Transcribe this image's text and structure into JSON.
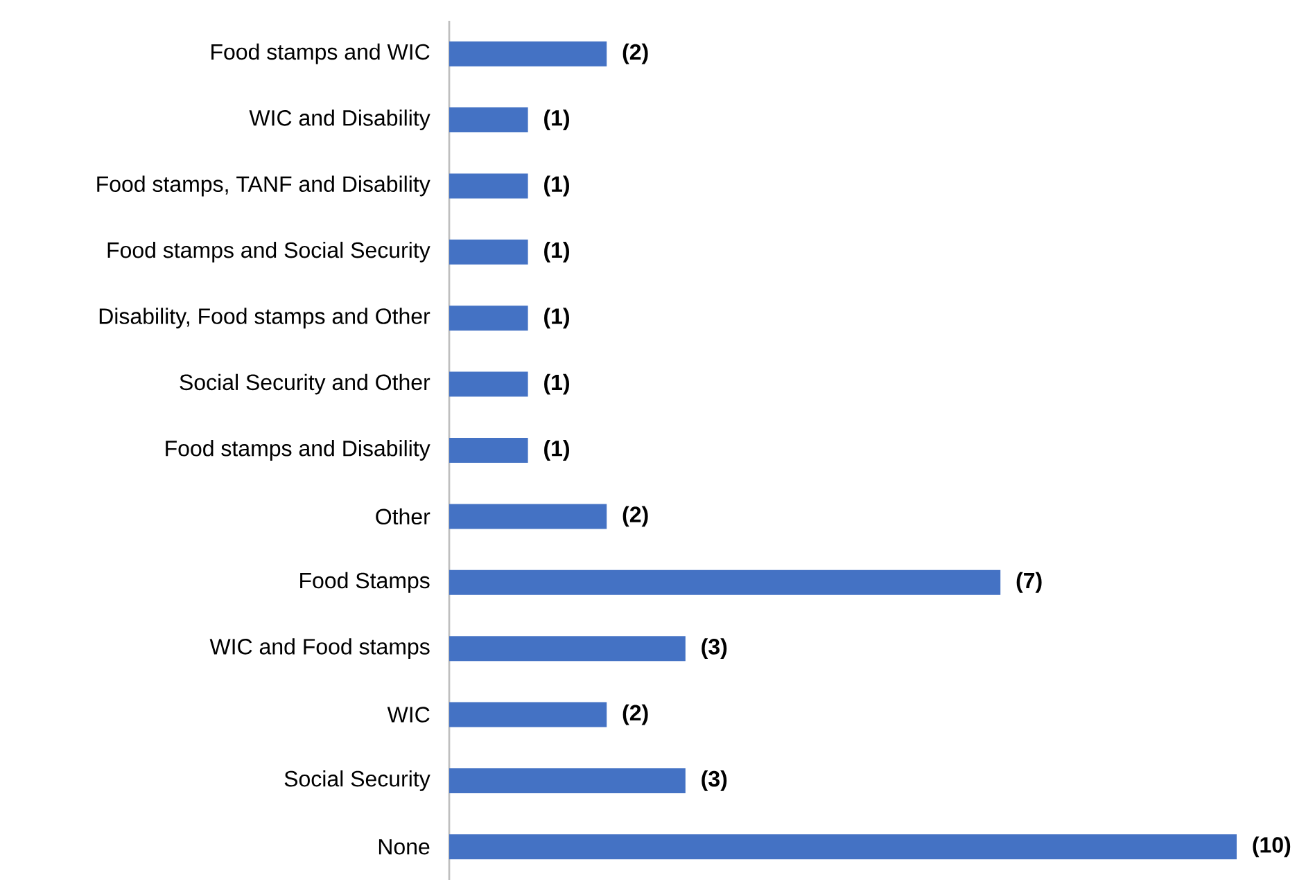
{
  "chart_data": {
    "type": "bar",
    "orientation": "horizontal",
    "categories": [
      "Food stamps and WIC",
      "WIC and Disability",
      "Food stamps, TANF and Disability",
      "Food stamps and Social Security",
      "Disability, Food stamps and Other",
      "Social Security and Other",
      "Food stamps and Disability",
      "Other",
      "Food Stamps",
      "WIC and Food stamps",
      "WIC",
      "Social Security",
      "None"
    ],
    "values": [
      2,
      1,
      1,
      1,
      1,
      1,
      1,
      2,
      7,
      3,
      2,
      3,
      10
    ],
    "value_labels": [
      "(2)",
      "(1)",
      "(1)",
      "(1)",
      "(1)",
      "(1)",
      "(1)",
      "(2)",
      "(7)",
      "(3)",
      "(2)",
      "(3)",
      "(10)"
    ],
    "color": "#4472c4"
  }
}
